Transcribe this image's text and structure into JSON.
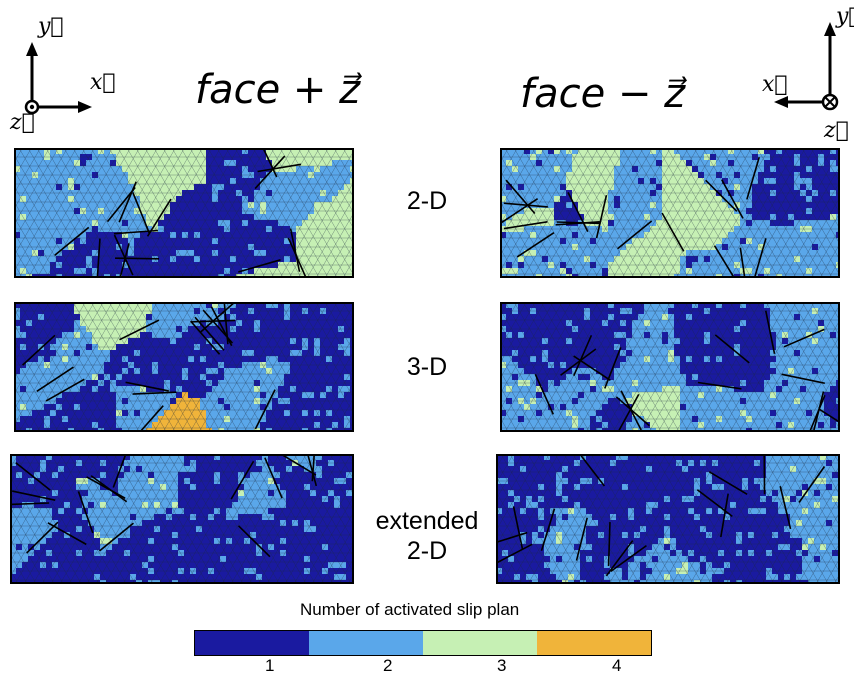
{
  "titles": {
    "left": "face + z⃗",
    "right": "face − z⃗"
  },
  "axes_left": {
    "y": "y⃗",
    "x": "x⃗",
    "z": "z⃗"
  },
  "axes_right": {
    "y": "y⃗",
    "x": "x⃗",
    "z": "z⃗"
  },
  "rows": [
    {
      "label": "2-D"
    },
    {
      "label": "3-D"
    },
    {
      "label": "extended\n2-D"
    }
  ],
  "colorbar": {
    "title": "Number of activated slip plan",
    "levels": [
      {
        "value": "1",
        "color": "#1a1aa0"
      },
      {
        "value": "2",
        "color": "#5aa7ea"
      },
      {
        "value": "3",
        "color": "#c6f0b4"
      },
      {
        "value": "4",
        "color": "#f0b43a"
      }
    ]
  }
}
